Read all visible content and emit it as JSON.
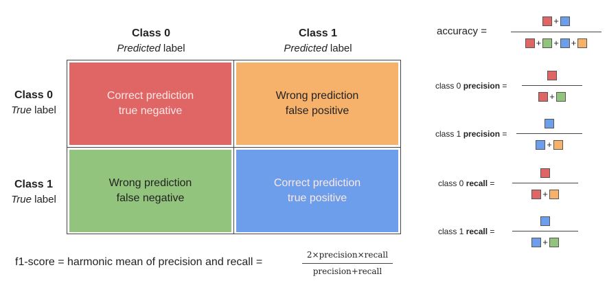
{
  "matrix": {
    "col0": {
      "title": "Class 0",
      "sub_em": "Predicted",
      "sub_rest": " label"
    },
    "col1": {
      "title": "Class 1",
      "sub_em": "Predicted",
      "sub_rest": " label"
    },
    "row0": {
      "title": "Class 0",
      "sub_em": "True",
      "sub_rest": " label"
    },
    "row1": {
      "title": "Class 1",
      "sub_em": "True",
      "sub_rest": " label"
    },
    "cells": {
      "tn": {
        "line1": "Correct prediction",
        "line2": "true negative",
        "color": "#e06666"
      },
      "fp": {
        "line1": "Wrong prediction",
        "line2": "false positive",
        "color": "#f6b26b"
      },
      "fn": {
        "line1": "Wrong prediction",
        "line2": "false negative",
        "color": "#93c47d"
      },
      "tp": {
        "line1": "Correct prediction",
        "line2": "true positive",
        "color": "#6d9eeb"
      }
    }
  },
  "formulas": {
    "accuracy_label": "accuracy =",
    "plus": "+",
    "p0": {
      "prefix": "class 0 ",
      "metric": "precision",
      "suffix": " ="
    },
    "p1": {
      "prefix": "class 1 ",
      "metric": "precision",
      "suffix": " ="
    },
    "r0": {
      "prefix": "class 0 ",
      "metric": "recall",
      "suffix": " ="
    },
    "r1": {
      "prefix": "class 1 ",
      "metric": "recall",
      "suffix": " ="
    }
  },
  "f1": {
    "label": "f1-score = harmonic mean of precision and recall =",
    "numerator": "2×precision×recall",
    "denominator": "precision+recall"
  }
}
